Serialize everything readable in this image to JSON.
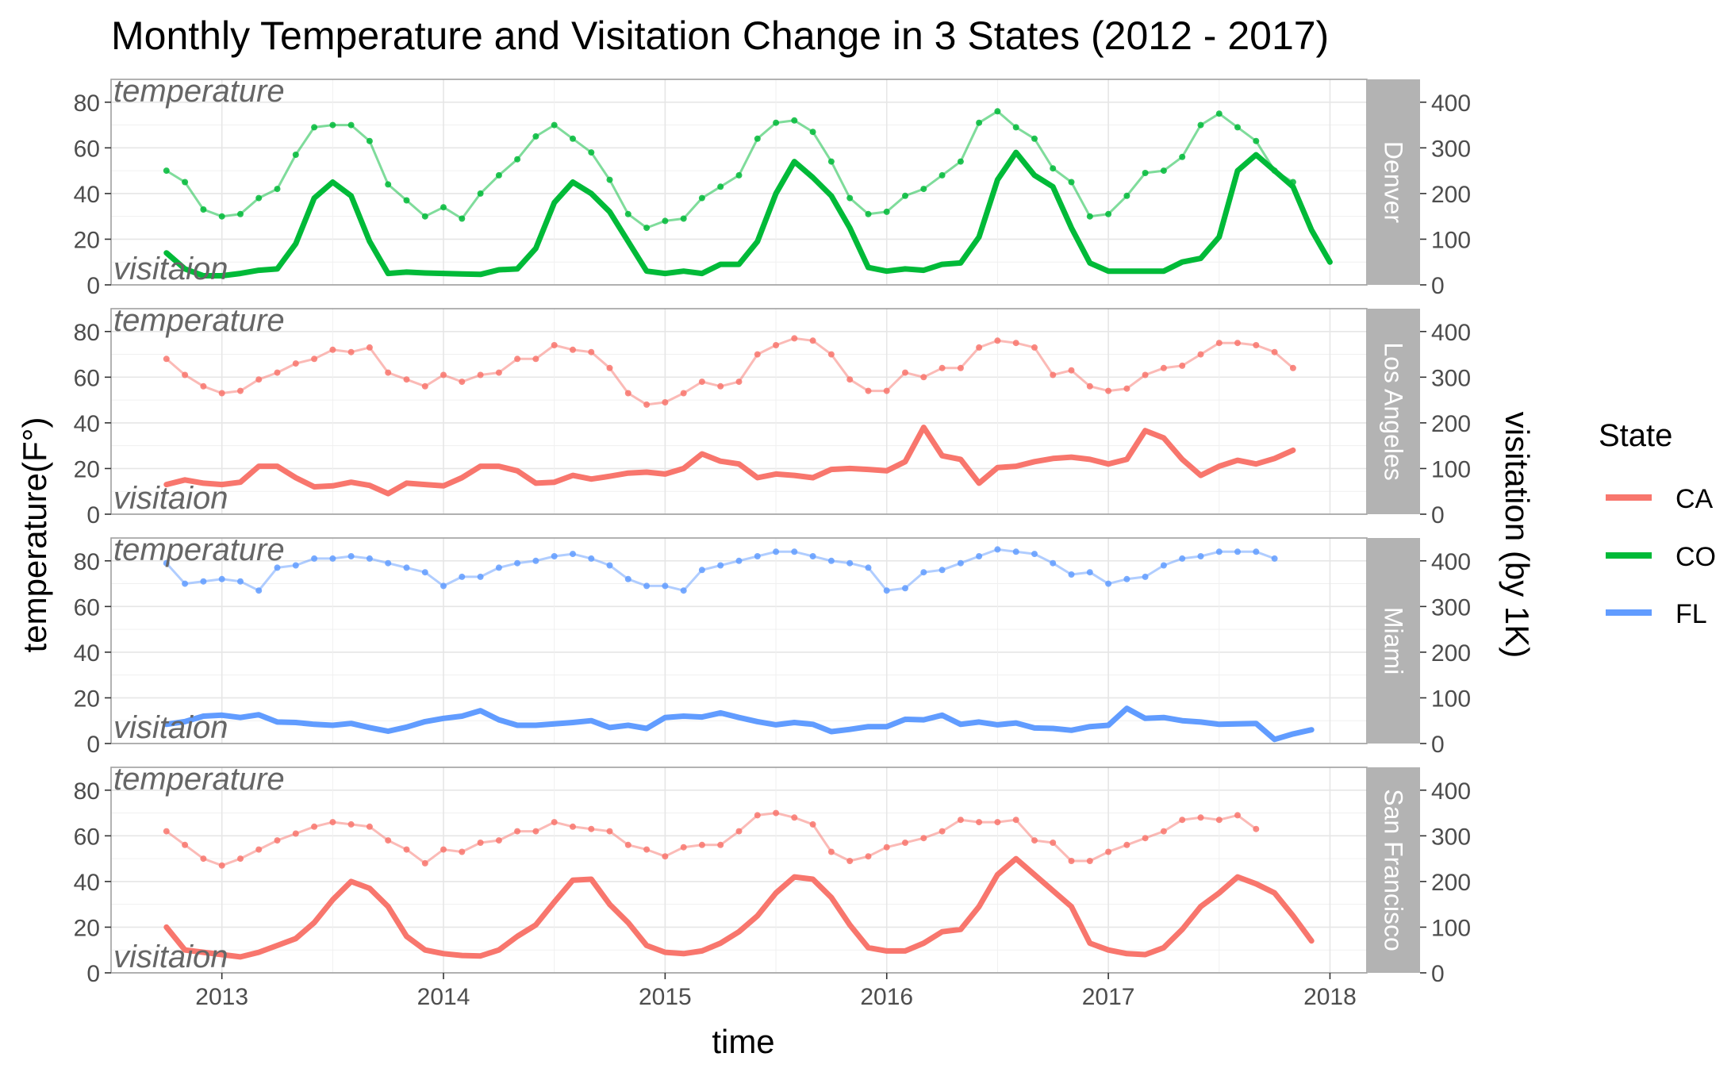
{
  "chart_data": {
    "type": "line",
    "title": "Monthly Temperature and Visitation Change in 3 States (2012 - 2017)",
    "xlabel": "time",
    "ylabel_left": "temperature(F°)",
    "ylabel_right": "visitation (by 1K)",
    "x_ticks": [
      "2013",
      "2014",
      "2015",
      "2016",
      "2017",
      "2018"
    ],
    "x_range": [
      "2012-07",
      "2018-03"
    ],
    "y_left_range": [
      0,
      90
    ],
    "y_left_ticks": [
      "0",
      "20",
      "40",
      "60",
      "80"
    ],
    "y_right_range": [
      0,
      450
    ],
    "y_right_ticks": [
      "0",
      "100",
      "200",
      "300",
      "400"
    ],
    "grid": true,
    "legend": {
      "title": "State",
      "position": "right",
      "entries": [
        {
          "label": "CA",
          "color": "#F8766D"
        },
        {
          "label": "CO",
          "color": "#00BA38"
        },
        {
          "label": "FL",
          "color": "#619CFF"
        }
      ]
    },
    "x_start": "2012-10",
    "panel_labels": {
      "temperature": "temperature",
      "visitation": "visitaion"
    },
    "panels": [
      {
        "strip": "Denver",
        "state": "CO",
        "color": "#00BA38",
        "temperature": [
          50,
          45,
          33,
          30,
          31,
          38,
          42,
          57,
          69,
          70,
          70,
          63,
          44,
          37,
          30,
          34,
          29,
          40,
          48,
          55,
          65,
          70,
          64,
          58,
          46,
          31,
          25,
          28,
          29,
          38,
          43,
          48,
          64,
          71,
          72,
          67,
          54,
          38,
          31,
          32,
          39,
          42,
          48,
          54,
          71,
          76,
          69,
          64,
          51,
          45,
          30,
          31,
          39,
          49,
          50,
          56,
          70,
          75,
          69,
          63,
          50,
          45
        ],
        "visitation": [
          70,
          35,
          20,
          20,
          25,
          32,
          35,
          90,
          190,
          225,
          195,
          95,
          25,
          28,
          26,
          25,
          24,
          23,
          33,
          35,
          80,
          180,
          225,
          200,
          160,
          95,
          30,
          25,
          30,
          25,
          45,
          45,
          95,
          200,
          270,
          235,
          195,
          125,
          38,
          30,
          35,
          32,
          45,
          48,
          105,
          230,
          290,
          240,
          215,
          125,
          48,
          30,
          30,
          30,
          30,
          50,
          58,
          105,
          250,
          285,
          250,
          215,
          120,
          50
        ]
      },
      {
        "strip": "Los Angeles",
        "state": "CA",
        "color": "#F8766D",
        "temperature": [
          68,
          61,
          56,
          53,
          54,
          59,
          62,
          66,
          68,
          72,
          71,
          73,
          62,
          59,
          56,
          61,
          58,
          61,
          62,
          68,
          68,
          74,
          72,
          71,
          64,
          53,
          48,
          49,
          53,
          58,
          56,
          58,
          70,
          74,
          77,
          76,
          70,
          59,
          54,
          54,
          62,
          60,
          64,
          64,
          73,
          76,
          75,
          73,
          61,
          63,
          56,
          54,
          55,
          61,
          64,
          65,
          70,
          75,
          75,
          74,
          71,
          64
        ],
        "visitation": [
          65,
          75,
          68,
          65,
          70,
          105,
          105,
          80,
          60,
          62,
          70,
          63,
          45,
          68,
          65,
          62,
          80,
          105,
          105,
          95,
          68,
          70,
          85,
          77,
          83,
          90,
          92,
          88,
          100,
          132,
          116,
          110,
          80,
          88,
          85,
          80,
          98,
          100,
          98,
          95,
          115,
          190,
          128,
          120,
          68,
          102,
          105,
          115,
          122,
          125,
          120,
          110,
          120,
          183,
          167,
          120,
          85,
          105,
          118,
          110,
          122,
          140
        ]
      },
      {
        "strip": "Miami",
        "state": "FL",
        "color": "#619CFF",
        "temperature": [
          79,
          70,
          71,
          72,
          71,
          67,
          77,
          78,
          81,
          81,
          82,
          81,
          79,
          77,
          75,
          69,
          73,
          73,
          77,
          79,
          80,
          82,
          83,
          81,
          78,
          72,
          69,
          69,
          67,
          76,
          78,
          80,
          82,
          84,
          84,
          82,
          80,
          79,
          77,
          67,
          68,
          75,
          76,
          79,
          82,
          85,
          84,
          83,
          79,
          74,
          75,
          70,
          72,
          73,
          78,
          81,
          82,
          84,
          84,
          84,
          81
        ],
        "visitation": [
          42,
          48,
          60,
          62,
          57,
          63,
          47,
          46,
          42,
          40,
          44,
          35,
          27,
          36,
          48,
          55,
          60,
          72,
          52,
          40,
          40,
          43,
          46,
          50,
          35,
          40,
          33,
          57,
          60,
          58,
          67,
          57,
          48,
          41,
          46,
          42,
          26,
          31,
          37,
          37,
          53,
          52,
          62,
          42,
          47,
          41,
          45,
          34,
          33,
          29,
          37,
          40,
          77,
          55,
          57,
          50,
          47,
          42,
          43,
          44,
          9,
          21,
          30
        ]
      },
      {
        "strip": "San Francisco",
        "state": "CA",
        "color": "#F8766D",
        "temperature": [
          62,
          56,
          50,
          47,
          50,
          54,
          58,
          61,
          64,
          66,
          65,
          64,
          58,
          54,
          48,
          54,
          53,
          57,
          58,
          62,
          62,
          66,
          64,
          63,
          62,
          56,
          54,
          51,
          55,
          56,
          56,
          62,
          69,
          70,
          68,
          65,
          53,
          49,
          51,
          55,
          57,
          59,
          62,
          67,
          66,
          66,
          67,
          58,
          57,
          49,
          49,
          53,
          56,
          59,
          62,
          67,
          68,
          67,
          69,
          63
        ],
        "visitation": [
          100,
          50,
          45,
          40,
          35,
          45,
          60,
          75,
          110,
          160,
          200,
          185,
          145,
          80,
          50,
          42,
          38,
          37,
          50,
          80,
          105,
          155,
          203,
          205,
          150,
          110,
          60,
          45,
          42,
          48,
          65,
          90,
          125,
          175,
          210,
          205,
          165,
          105,
          55,
          48,
          48,
          65,
          90,
          95,
          145,
          215,
          250,
          215,
          180,
          145,
          65,
          50,
          42,
          40,
          55,
          95,
          145,
          175,
          210,
          195,
          175,
          125,
          70
        ]
      }
    ]
  }
}
